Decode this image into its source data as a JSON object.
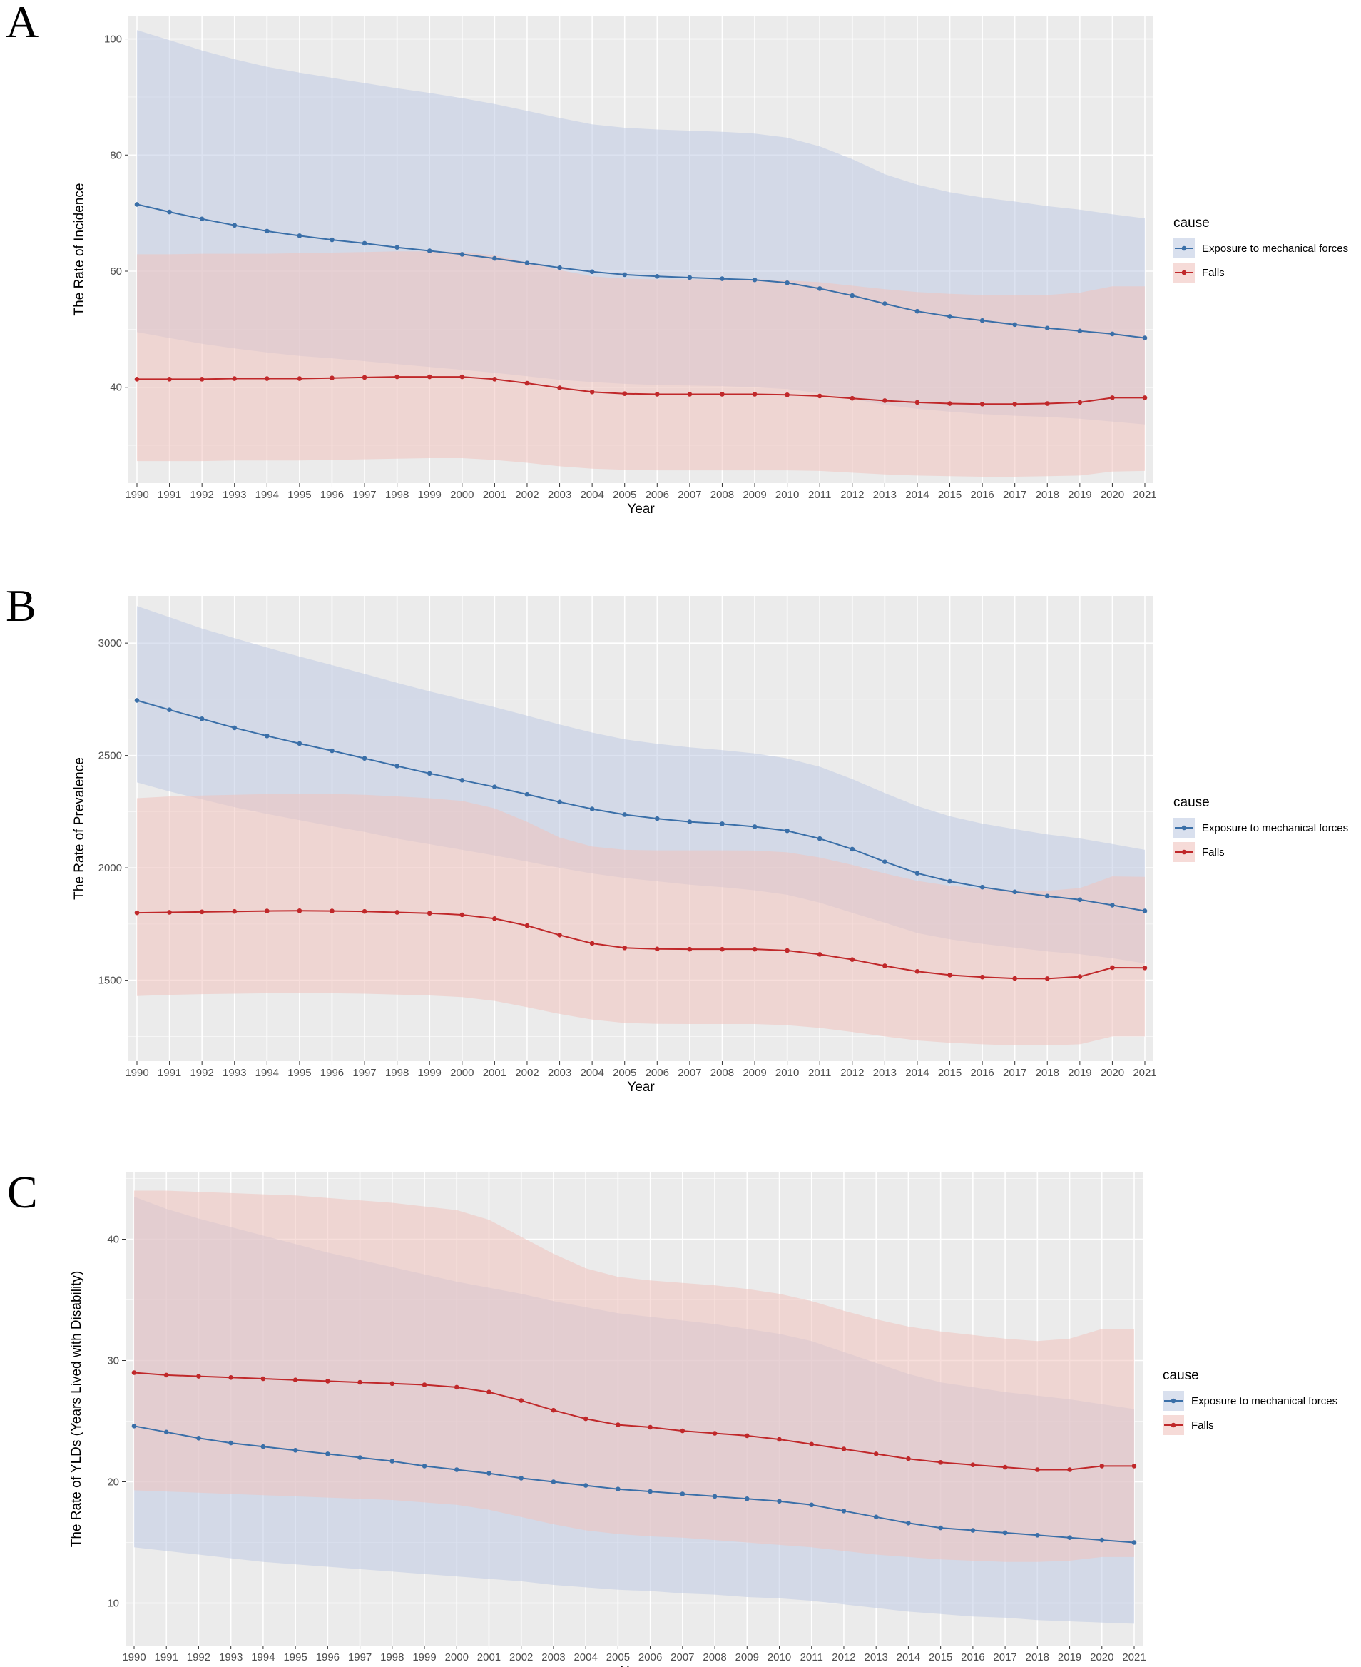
{
  "colors": {
    "panel_bg": "#ebebeb",
    "grid": "#ffffff",
    "mechanical_line": "#3a6fa8",
    "mechanical_band": "#bfcbe3",
    "falls_line": "#c0282a",
    "falls_band": "#f0c3be"
  },
  "legend": {
    "title": "cause",
    "items": [
      "Exposure to mechanical forces",
      "Falls"
    ]
  },
  "chart_data": [
    {
      "panel": "A",
      "type": "line",
      "xlabel": "Year",
      "ylabel": "The Rate of Incidence",
      "x": [
        1990,
        1991,
        1992,
        1993,
        1994,
        1995,
        1996,
        1997,
        1998,
        1999,
        2000,
        2001,
        2002,
        2003,
        2004,
        2005,
        2006,
        2007,
        2008,
        2009,
        2010,
        2011,
        2012,
        2013,
        2014,
        2015,
        2016,
        2017,
        2018,
        2019,
        2020,
        2021
      ],
      "ylim": [
        23.5,
        104
      ],
      "yticks": [
        40,
        60,
        80,
        100
      ],
      "series": [
        {
          "name": "Exposure to mechanical forces",
          "values": [
            71.5,
            70.2,
            69.0,
            67.9,
            66.9,
            66.1,
            65.4,
            64.8,
            64.1,
            63.5,
            62.9,
            62.2,
            61.4,
            60.6,
            59.9,
            59.4,
            59.1,
            58.9,
            58.7,
            58.5,
            58.0,
            57.0,
            55.8,
            54.4,
            53.1,
            52.2,
            51.5,
            50.8,
            50.2,
            49.7,
            49.2,
            48.5
          ],
          "lower": [
            49.5,
            48.5,
            47.5,
            46.7,
            46.0,
            45.4,
            45.0,
            44.5,
            44.0,
            43.5,
            43.0,
            42.5,
            41.9,
            41.3,
            40.9,
            40.6,
            40.4,
            40.3,
            40.2,
            40.0,
            39.7,
            39.0,
            38.0,
            37.0,
            36.3,
            35.8,
            35.4,
            35.1,
            34.9,
            34.6,
            34.1,
            33.6
          ],
          "upper": [
            101.5,
            99.8,
            98.0,
            96.5,
            95.2,
            94.2,
            93.3,
            92.4,
            91.5,
            90.7,
            89.8,
            88.8,
            87.6,
            86.4,
            85.3,
            84.7,
            84.4,
            84.2,
            84.0,
            83.7,
            83.0,
            81.5,
            79.3,
            76.7,
            74.9,
            73.6,
            72.7,
            72.0,
            71.2,
            70.6,
            69.8,
            69.1
          ]
        },
        {
          "name": "Falls",
          "values": [
            41.4,
            41.4,
            41.4,
            41.5,
            41.5,
            41.5,
            41.6,
            41.7,
            41.8,
            41.8,
            41.8,
            41.4,
            40.7,
            39.9,
            39.2,
            38.9,
            38.8,
            38.8,
            38.8,
            38.8,
            38.7,
            38.5,
            38.1,
            37.7,
            37.4,
            37.2,
            37.1,
            37.1,
            37.2,
            37.4,
            38.2,
            38.2
          ],
          "lower": [
            27.3,
            27.3,
            27.3,
            27.4,
            27.4,
            27.4,
            27.5,
            27.6,
            27.7,
            27.8,
            27.8,
            27.5,
            27.0,
            26.4,
            26.0,
            25.8,
            25.7,
            25.7,
            25.7,
            25.7,
            25.7,
            25.6,
            25.3,
            25.0,
            24.8,
            24.7,
            24.6,
            24.6,
            24.7,
            24.8,
            25.5,
            25.6
          ],
          "upper": [
            62.9,
            62.9,
            63.0,
            63.0,
            63.0,
            63.1,
            63.2,
            63.3,
            63.4,
            63.4,
            63.3,
            62.7,
            61.5,
            60.2,
            59.1,
            58.7,
            58.6,
            58.6,
            58.6,
            58.6,
            58.4,
            58.1,
            57.5,
            56.9,
            56.4,
            56.1,
            55.9,
            55.9,
            55.9,
            56.3,
            57.4,
            57.4
          ]
        }
      ]
    },
    {
      "panel": "B",
      "type": "line",
      "xlabel": "Year",
      "ylabel": "The Rate of Prevalence",
      "x": [
        1990,
        1991,
        1992,
        1993,
        1994,
        1995,
        1996,
        1997,
        1998,
        1999,
        2000,
        2001,
        2002,
        2003,
        2004,
        2005,
        2006,
        2007,
        2008,
        2009,
        2010,
        2011,
        2012,
        2013,
        2014,
        2015,
        2016,
        2017,
        2018,
        2019,
        2020,
        2021
      ],
      "ylim": [
        1140,
        3210
      ],
      "yticks": [
        1500,
        2000,
        2500,
        3000
      ],
      "series": [
        {
          "name": "Exposure to mechanical forces",
          "values": [
            2745,
            2703,
            2663,
            2623,
            2587,
            2553,
            2521,
            2487,
            2453,
            2420,
            2390,
            2360,
            2327,
            2293,
            2262,
            2237,
            2219,
            2205,
            2196,
            2183,
            2165,
            2130,
            2083,
            2027,
            1976,
            1940,
            1914,
            1893,
            1874,
            1858,
            1834,
            1808
          ],
          "lower": [
            2380,
            2340,
            2305,
            2270,
            2240,
            2212,
            2185,
            2160,
            2130,
            2105,
            2080,
            2055,
            2028,
            2000,
            1975,
            1955,
            1940,
            1925,
            1914,
            1900,
            1880,
            1845,
            1800,
            1756,
            1710,
            1682,
            1662,
            1645,
            1628,
            1616,
            1598,
            1575
          ],
          "upper": [
            3165,
            3115,
            3065,
            3022,
            2980,
            2940,
            2902,
            2863,
            2823,
            2785,
            2750,
            2715,
            2677,
            2638,
            2602,
            2572,
            2552,
            2536,
            2524,
            2509,
            2487,
            2450,
            2395,
            2333,
            2275,
            2230,
            2197,
            2172,
            2149,
            2131,
            2106,
            2080
          ]
        },
        {
          "name": "Falls",
          "values": [
            1800,
            1802,
            1804,
            1806,
            1808,
            1809,
            1808,
            1806,
            1802,
            1798,
            1791,
            1774,
            1743,
            1701,
            1664,
            1644,
            1639,
            1638,
            1638,
            1638,
            1632,
            1615,
            1592,
            1564,
            1539,
            1523,
            1514,
            1508,
            1507,
            1516,
            1556,
            1555
          ],
          "lower": [
            1430,
            1435,
            1438,
            1440,
            1442,
            1443,
            1442,
            1440,
            1436,
            1432,
            1425,
            1408,
            1380,
            1350,
            1325,
            1310,
            1306,
            1305,
            1305,
            1305,
            1300,
            1288,
            1270,
            1250,
            1232,
            1222,
            1215,
            1210,
            1210,
            1215,
            1250,
            1250
          ],
          "upper": [
            2310,
            2318,
            2322,
            2325,
            2328,
            2330,
            2329,
            2325,
            2318,
            2310,
            2298,
            2265,
            2205,
            2135,
            2095,
            2080,
            2078,
            2078,
            2078,
            2077,
            2069,
            2046,
            2013,
            1975,
            1942,
            1920,
            1908,
            1900,
            1898,
            1910,
            1962,
            1960
          ]
        }
      ]
    },
    {
      "panel": "C",
      "type": "line",
      "xlabel": "Year",
      "ylabel": "The Rate of YLDs (Years Lived with Disability)",
      "x": [
        1990,
        1991,
        1992,
        1993,
        1994,
        1995,
        1996,
        1997,
        1998,
        1999,
        2000,
        2001,
        2002,
        2003,
        2004,
        2005,
        2006,
        2007,
        2008,
        2009,
        2010,
        2011,
        2012,
        2013,
        2014,
        2015,
        2016,
        2017,
        2018,
        2019,
        2020,
        2021
      ],
      "ylim": [
        6.5,
        45.5
      ],
      "yticks": [
        10,
        20,
        30,
        40
      ],
      "series": [
        {
          "name": "Exposure to mechanical forces",
          "values": [
            24.6,
            24.1,
            23.6,
            23.2,
            22.9,
            22.6,
            22.3,
            22.0,
            21.7,
            21.3,
            21.0,
            20.7,
            20.3,
            20.0,
            19.7,
            19.4,
            19.2,
            19.0,
            18.8,
            18.6,
            18.4,
            18.1,
            17.6,
            17.1,
            16.6,
            16.2,
            16.0,
            15.8,
            15.6,
            15.4,
            15.2,
            15.0
          ],
          "lower": [
            14.6,
            14.3,
            14.0,
            13.7,
            13.4,
            13.2,
            13.0,
            12.8,
            12.6,
            12.4,
            12.2,
            12.0,
            11.8,
            11.5,
            11.3,
            11.1,
            11.0,
            10.8,
            10.7,
            10.5,
            10.4,
            10.2,
            9.9,
            9.6,
            9.3,
            9.1,
            8.9,
            8.8,
            8.6,
            8.5,
            8.4,
            8.3
          ],
          "upper": [
            43.5,
            42.5,
            41.7,
            41.0,
            40.3,
            39.6,
            38.9,
            38.3,
            37.7,
            37.1,
            36.5,
            36.0,
            35.5,
            34.9,
            34.4,
            33.9,
            33.6,
            33.3,
            33.0,
            32.6,
            32.2,
            31.6,
            30.7,
            29.8,
            28.9,
            28.2,
            27.8,
            27.4,
            27.1,
            26.8,
            26.4,
            26.0
          ]
        },
        {
          "name": "Falls",
          "values": [
            29.0,
            28.8,
            28.7,
            28.6,
            28.5,
            28.4,
            28.3,
            28.2,
            28.1,
            28.0,
            27.8,
            27.4,
            26.7,
            25.9,
            25.2,
            24.7,
            24.5,
            24.2,
            24.0,
            23.8,
            23.5,
            23.1,
            22.7,
            22.3,
            21.9,
            21.6,
            21.4,
            21.2,
            21.0,
            21.0,
            21.3,
            21.3
          ],
          "lower": [
            19.3,
            19.2,
            19.1,
            19.0,
            18.9,
            18.8,
            18.7,
            18.6,
            18.5,
            18.3,
            18.1,
            17.7,
            17.1,
            16.5,
            16.0,
            15.7,
            15.5,
            15.4,
            15.2,
            15.0,
            14.8,
            14.6,
            14.3,
            14.0,
            13.8,
            13.6,
            13.5,
            13.4,
            13.4,
            13.5,
            13.8,
            13.8
          ],
          "upper": [
            44.0,
            44.0,
            43.9,
            43.8,
            43.7,
            43.6,
            43.4,
            43.2,
            43.0,
            42.7,
            42.4,
            41.6,
            40.2,
            38.8,
            37.6,
            36.9,
            36.6,
            36.4,
            36.2,
            35.9,
            35.5,
            34.9,
            34.1,
            33.4,
            32.8,
            32.4,
            32.1,
            31.8,
            31.6,
            31.8,
            32.6,
            32.6
          ]
        }
      ]
    }
  ]
}
